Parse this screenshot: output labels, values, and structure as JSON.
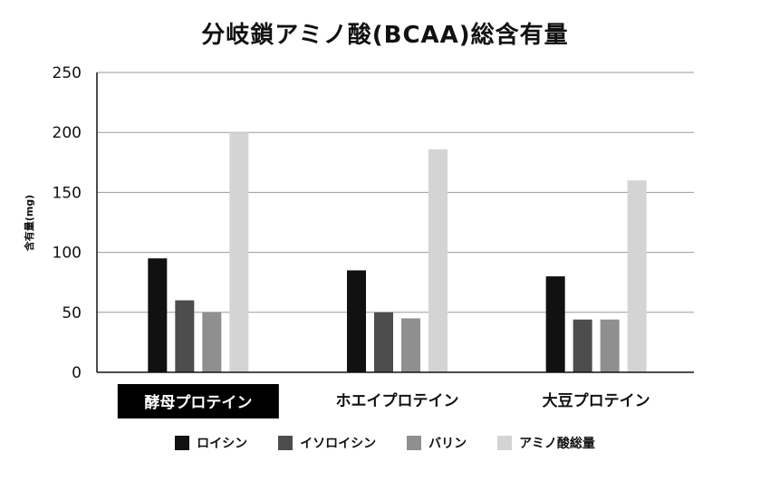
{
  "chart_data": {
    "type": "bar",
    "title": "分岐鎖アミノ酸(BCAA)総含有量",
    "ylabel": "含有量(mg)",
    "xlabel": "",
    "ylim": [
      0,
      250
    ],
    "yticks": [
      0,
      50,
      100,
      150,
      200,
      250
    ],
    "grid": true,
    "legend_position": "bottom",
    "highlighted_category": 0,
    "categories": [
      "酵母プロテイン",
      "ホエイプロテイン",
      "大豆プロテイン"
    ],
    "series": [
      {
        "name": "ロイシン",
        "color": "#111111",
        "values": [
          95,
          85,
          80
        ]
      },
      {
        "name": "イソロイシン",
        "color": "#4d4d4d",
        "values": [
          60,
          50,
          44
        ]
      },
      {
        "name": "バリン",
        "color": "#8f8f8f",
        "values": [
          50,
          45,
          44
        ]
      },
      {
        "name": "アミノ酸総量",
        "color": "#d4d4d4",
        "values": [
          200,
          186,
          160
        ]
      }
    ]
  }
}
